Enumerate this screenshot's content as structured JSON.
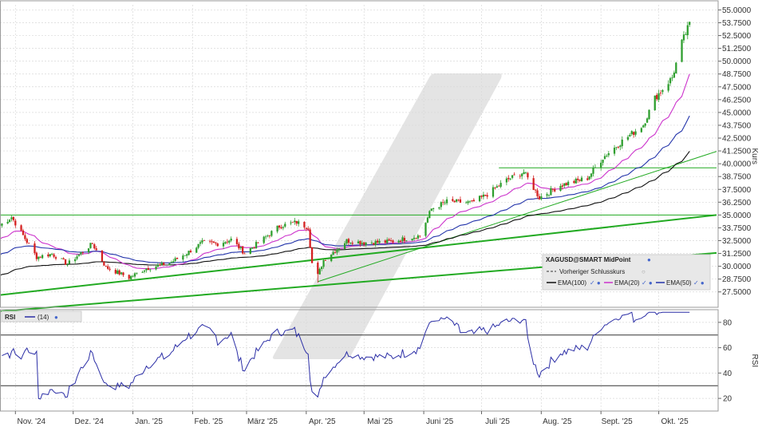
{
  "chart_data": [
    {
      "type": "candlestick",
      "symbol_label": "XAGUSD@SMART MidPoint",
      "ylabel": "Kurs",
      "ylim": [
        26.0,
        55.5
      ],
      "y_ticks": [
        "27.5000",
        "28.7500",
        "30.0000",
        "31.2500",
        "32.5000",
        "33.7500",
        "35.0000",
        "36.2500",
        "37.5000",
        "38.7500",
        "40.0000",
        "41.2500",
        "42.5000",
        "43.7500",
        "45.0000",
        "46.2500",
        "47.5000",
        "48.7500",
        "50.0000",
        "51.2500",
        "52.5000",
        "53.7500",
        "55.0000"
      ],
      "x_ticks": [
        "Nov. '24",
        "Dez. '24",
        "Jan. '25",
        "Feb. '25",
        "März '25",
        "Apr. '25",
        "Mai '25",
        "Juni '25",
        "Juli '25",
        "Aug. '25",
        "Sept. '25",
        "Okt. '25"
      ],
      "x_tick_dates": [
        "2024-11-01",
        "2024-12-01",
        "2025-01-01",
        "2025-02-01",
        "2025-03-01",
        "2025-04-01",
        "2025-05-01",
        "2025-06-01",
        "2025-07-01",
        "2025-08-01",
        "2025-09-01",
        "2025-10-01"
      ],
      "date_range": [
        "2024-10-24",
        "2025-10-17"
      ],
      "close_anchors": [
        {
          "date": "2024-10-24",
          "value": 34.0
        },
        {
          "date": "2024-10-30",
          "value": 34.8
        },
        {
          "date": "2024-11-05",
          "value": 33.0
        },
        {
          "date": "2024-11-12",
          "value": 30.9
        },
        {
          "date": "2024-11-20",
          "value": 31.2
        },
        {
          "date": "2024-11-28",
          "value": 30.2
        },
        {
          "date": "2024-12-05",
          "value": 31.3
        },
        {
          "date": "2024-12-11",
          "value": 32.2
        },
        {
          "date": "2024-12-18",
          "value": 29.9
        },
        {
          "date": "2024-12-30",
          "value": 28.9
        },
        {
          "date": "2025-01-08",
          "value": 29.8
        },
        {
          "date": "2025-01-20",
          "value": 30.3
        },
        {
          "date": "2025-01-30",
          "value": 31.4
        },
        {
          "date": "2025-02-06",
          "value": 32.3
        },
        {
          "date": "2025-02-14",
          "value": 32.2
        },
        {
          "date": "2025-02-21",
          "value": 32.6
        },
        {
          "date": "2025-02-28",
          "value": 31.3
        },
        {
          "date": "2025-03-10",
          "value": 32.7
        },
        {
          "date": "2025-03-18",
          "value": 33.9
        },
        {
          "date": "2025-03-27",
          "value": 34.3
        },
        {
          "date": "2025-04-02",
          "value": 33.8
        },
        {
          "date": "2025-04-04",
          "value": 30.3
        },
        {
          "date": "2025-04-07",
          "value": 29.1
        },
        {
          "date": "2025-04-10",
          "value": 30.6
        },
        {
          "date": "2025-04-22",
          "value": 32.5
        },
        {
          "date": "2025-05-01",
          "value": 32.3
        },
        {
          "date": "2025-05-15",
          "value": 32.4
        },
        {
          "date": "2025-05-30",
          "value": 33.0
        },
        {
          "date": "2025-06-05",
          "value": 35.6
        },
        {
          "date": "2025-06-13",
          "value": 36.3
        },
        {
          "date": "2025-06-26",
          "value": 36.2
        },
        {
          "date": "2025-07-03",
          "value": 36.9
        },
        {
          "date": "2025-07-14",
          "value": 38.4
        },
        {
          "date": "2025-07-23",
          "value": 39.2
        },
        {
          "date": "2025-07-31",
          "value": 36.7
        },
        {
          "date": "2025-08-11",
          "value": 37.9
        },
        {
          "date": "2025-08-25",
          "value": 38.6
        },
        {
          "date": "2025-09-02",
          "value": 40.6
        },
        {
          "date": "2025-09-12",
          "value": 42.2
        },
        {
          "date": "2025-09-23",
          "value": 43.8
        },
        {
          "date": "2025-09-29",
          "value": 46.4
        },
        {
          "date": "2025-10-08",
          "value": 48.4
        },
        {
          "date": "2025-10-13",
          "value": 51.8
        },
        {
          "date": "2025-10-17",
          "value": 53.6
        }
      ],
      "series": [
        {
          "name": "Vorheriger Schlusskurs",
          "style": "dashed",
          "color": "#333333"
        },
        {
          "name": "EMA(100)",
          "period": 100,
          "color": "#111111"
        },
        {
          "name": "EMA(20)",
          "period": 20,
          "color": "#cc33cc"
        },
        {
          "name": "EMA(50)",
          "period": 50,
          "color": "#2233aa"
        }
      ],
      "colors": {
        "up": "#2e9e2e",
        "down": "#d42020",
        "trend": "#22aa22",
        "horizontal": "#22aa22"
      },
      "horizontal_lines": [
        {
          "value": 35.0,
          "from": "2024-10-24",
          "to": "2025-10-31"
        },
        {
          "value": 39.6,
          "from": "2025-07-10",
          "to": "2025-10-31"
        }
      ],
      "trend_lines": [
        {
          "from": {
            "date": "2024-10-24",
            "value": 27.2
          },
          "to": {
            "date": "2025-10-31",
            "value": 35.0
          },
          "width": 2
        },
        {
          "from": {
            "date": "2024-10-24",
            "value": 25.6
          },
          "to": {
            "date": "2025-10-31",
            "value": 31.3
          },
          "width": 2
        },
        {
          "from": {
            "date": "2025-04-07",
            "value": 28.5
          },
          "to": {
            "date": "2025-10-31",
            "value": 41.2
          },
          "width": 1
        }
      ]
    },
    {
      "type": "line",
      "name": "RSI",
      "legend_label": "RSI",
      "period_label": "(14)",
      "ylabel": "RSI",
      "ylim": [
        10,
        90
      ],
      "y_ticks": [
        20,
        40,
        60,
        80
      ],
      "levels": [
        30,
        70
      ],
      "color": "#2b2ea6"
    }
  ],
  "legend": {
    "title": "XAGUSD@SMART MidPoint",
    "prev_close": "Vorheriger Schlusskurs",
    "ema100": "EMA(100)",
    "ema20": "EMA(20)",
    "ema50": "EMA(50)"
  },
  "rsi_legend": {
    "name": "RSI",
    "period": "(14)"
  }
}
